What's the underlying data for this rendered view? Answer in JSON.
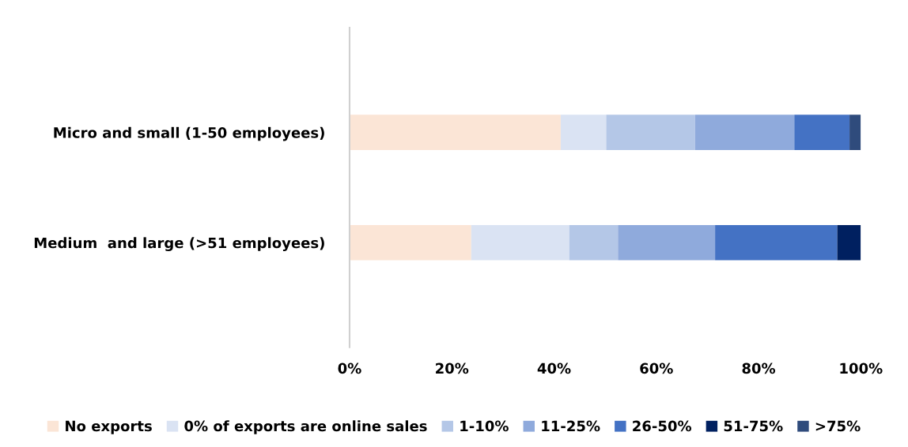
{
  "chart_data": {
    "type": "bar",
    "orientation": "horizontal",
    "stacked": true,
    "categories": [
      "Micro and small (1-50 employees)",
      "Medium  and large (>51 employees)"
    ],
    "series": [
      {
        "name": "No exports",
        "color": "#fbe5d6",
        "values": [
          41.3,
          23.8
        ]
      },
      {
        "name": "0% of exports are online sales",
        "color": "#dae3f3",
        "values": [
          8.9,
          19.2
        ]
      },
      {
        "name": "1-10%",
        "color": "#b4c7e7",
        "values": [
          17.4,
          9.5
        ]
      },
      {
        "name": "11-25%",
        "color": "#8faadc",
        "values": [
          19.4,
          19.0
        ]
      },
      {
        "name": "26-50%",
        "color": "#4472c4",
        "values": [
          10.8,
          23.9
        ]
      },
      {
        "name": "51-75%",
        "color": "#002060",
        "values": [
          0,
          4.6
        ]
      },
      {
        "name": ">75%",
        "color": "#2f4b7c",
        "values": [
          2.2,
          0
        ]
      }
    ],
    "xlim": [
      0,
      100
    ],
    "xticks": [
      {
        "value": 0,
        "label": "0%"
      },
      {
        "value": 20,
        "label": "20%"
      },
      {
        "value": 40,
        "label": "40%"
      },
      {
        "value": 60,
        "label": "60%"
      },
      {
        "value": 80,
        "label": "80%"
      },
      {
        "value": 100,
        "label": "100%"
      }
    ],
    "grid": false,
    "legend": "bottom"
  }
}
